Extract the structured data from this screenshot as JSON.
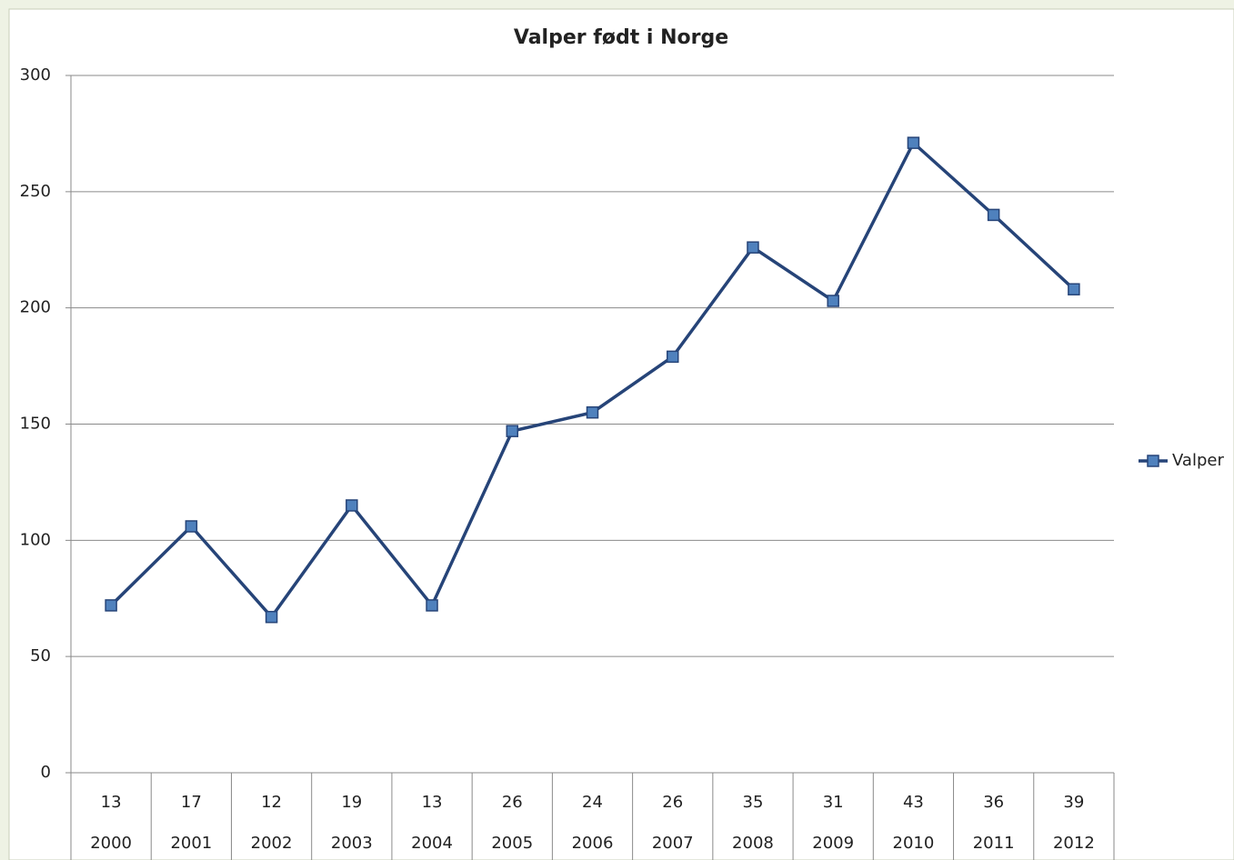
{
  "chart_data": {
    "type": "line",
    "title": "Valper født i Norge",
    "categories": [
      "2000",
      "2001",
      "2002",
      "2003",
      "2004",
      "2005",
      "2006",
      "2007",
      "2008",
      "2009",
      "2010",
      "2011",
      "2012"
    ],
    "category_sublabels": [
      "13",
      "17",
      "12",
      "19",
      "13",
      "26",
      "24",
      "26",
      "35",
      "31",
      "43",
      "36",
      "39"
    ],
    "series": [
      {
        "name": "Valper",
        "color": "#264478",
        "marker_color": "#4f81bd",
        "values": [
          72,
          106,
          67,
          115,
          72,
          147,
          155,
          179,
          226,
          203,
          271,
          240,
          208
        ]
      }
    ],
    "ylim": [
      0,
      300
    ],
    "yticks": [
      0,
      50,
      100,
      150,
      200,
      250,
      300
    ],
    "grid": true,
    "legend": "right"
  }
}
